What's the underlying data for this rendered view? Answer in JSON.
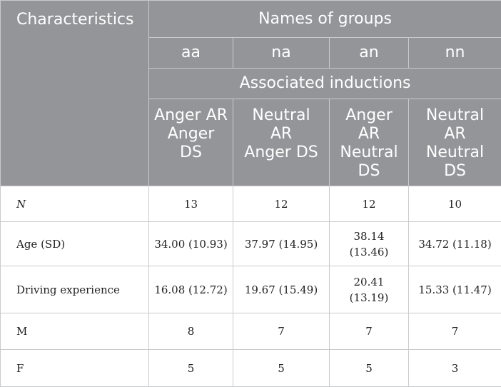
{
  "header": {
    "characteristics": "Characteristics",
    "names_of_groups": "Names of groups",
    "groups": [
      "aa",
      "na",
      "an",
      "nn"
    ],
    "associated_inductions": "Associated inductions",
    "inductions": [
      [
        "Anger AR",
        "Anger",
        "DS"
      ],
      [
        "Neutral",
        "AR",
        "Anger DS"
      ],
      [
        "Anger",
        "AR",
        "Neutral",
        "DS"
      ],
      [
        "Neutral",
        "AR",
        "Neutral",
        "DS"
      ]
    ]
  },
  "rows": [
    {
      "label": "N",
      "values": [
        [
          "13"
        ],
        [
          "12"
        ],
        [
          "12"
        ],
        [
          "10"
        ]
      ]
    },
    {
      "label": "Age (SD)",
      "values": [
        [
          "34.00 (10.93)"
        ],
        [
          "37.97 (14.95)"
        ],
        [
          "38.14",
          "(13.46)"
        ],
        [
          "34.72 (11.18)"
        ]
      ]
    },
    {
      "label": "Driving experience",
      "values": [
        [
          "16.08 (12.72)"
        ],
        [
          "19.67 (15.49)"
        ],
        [
          "20.41",
          "(13.19)"
        ],
        [
          "15.33 (11.47)"
        ]
      ]
    },
    {
      "label": "M",
      "values": [
        [
          "8"
        ],
        [
          "7"
        ],
        [
          "7"
        ],
        [
          "7"
        ]
      ]
    },
    {
      "label": "F",
      "values": [
        [
          "5"
        ],
        [
          "5"
        ],
        [
          "5"
        ],
        [
          "3"
        ]
      ]
    }
  ]
}
